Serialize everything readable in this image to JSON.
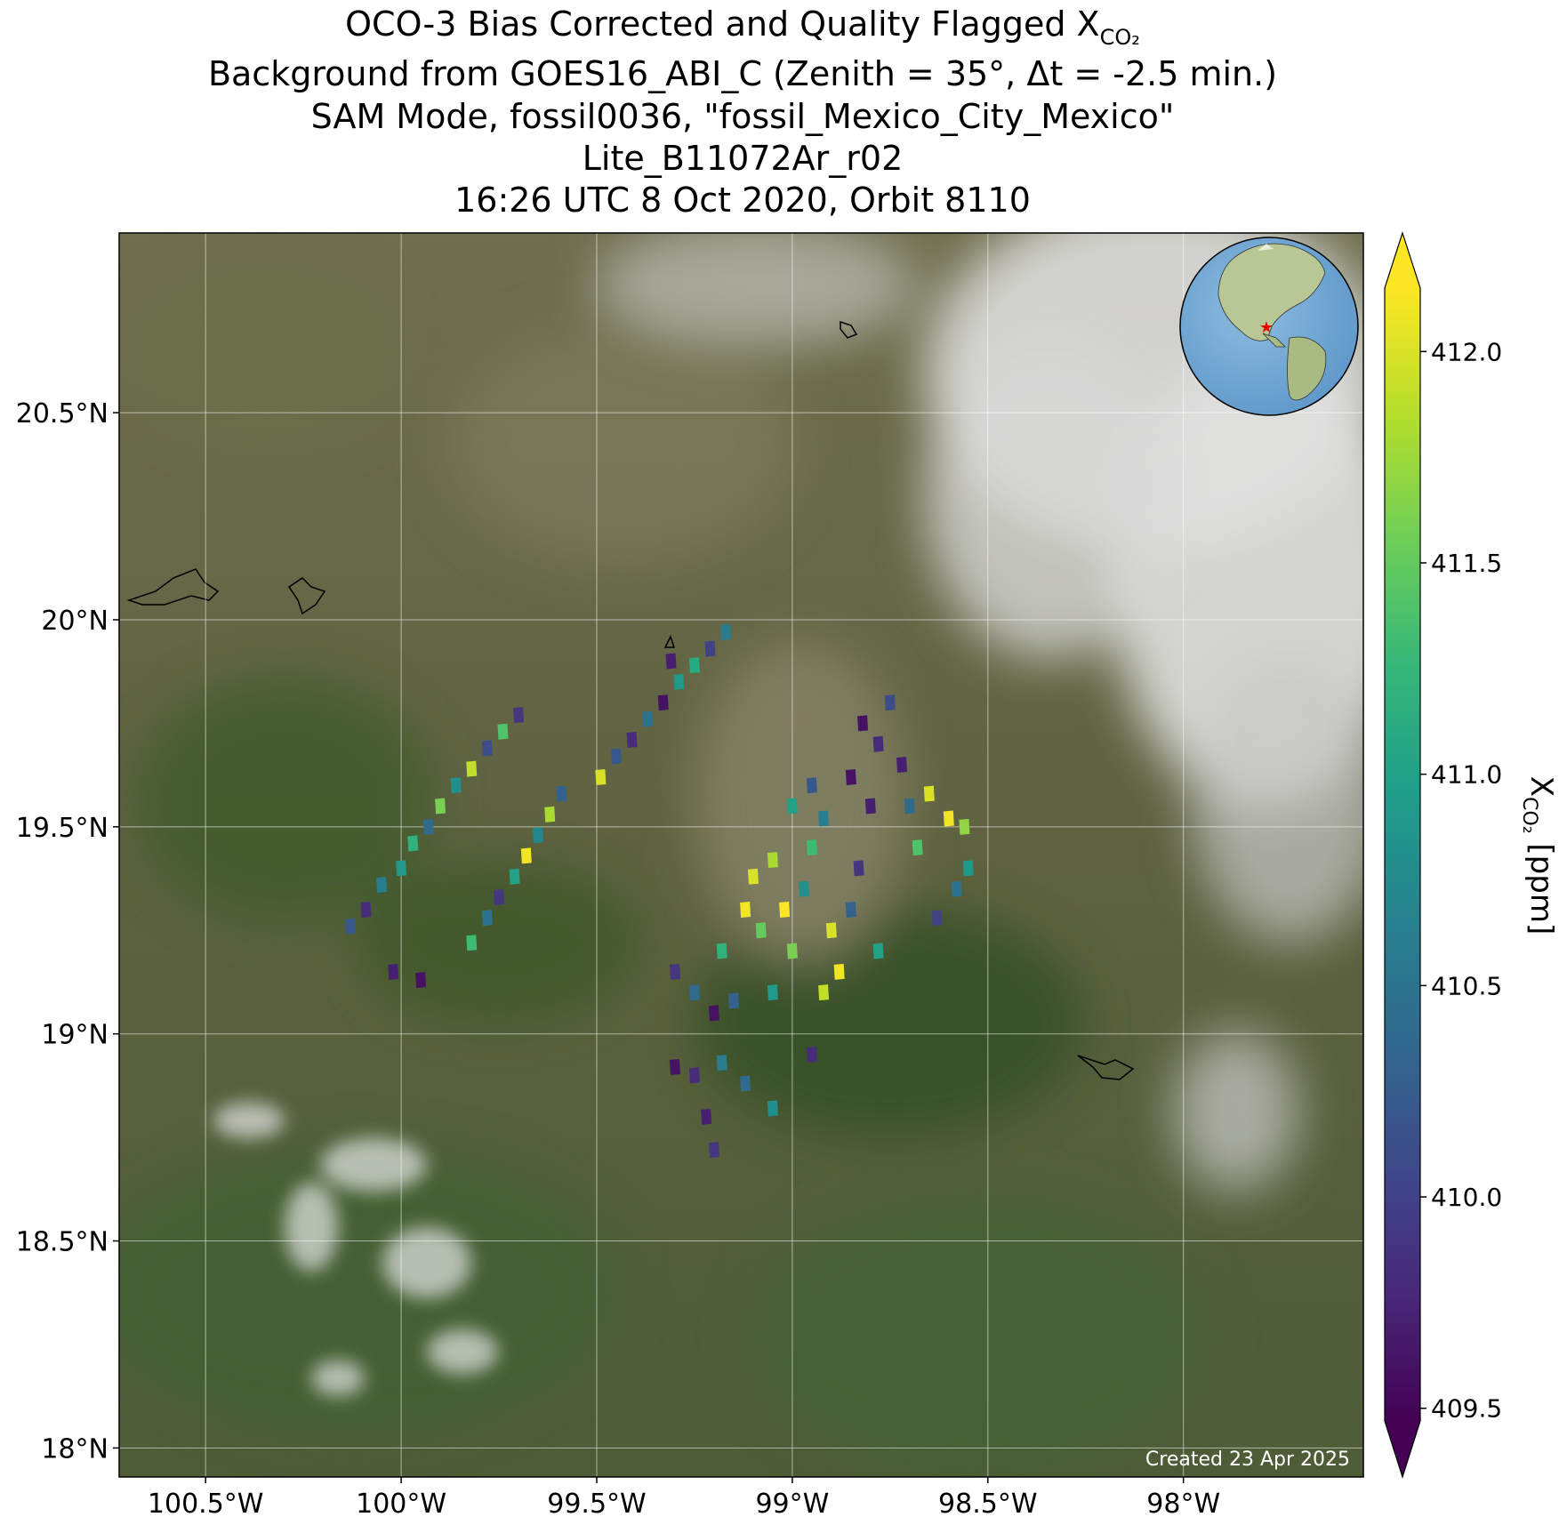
{
  "chart_data": {
    "type": "scatter",
    "title": "OCO-3 Bias Corrected and Quality Flagged X",
    "title_subscript": "CO₂",
    "subtitle": [
      "Background from GOES16_ABI_C (Zenith = 35°, Δt = -2.5 min.)",
      "SAM Mode, fossil0036, \"fossil_Mexico_City_Mexico\"",
      "Lite_B11072Ar_r02",
      "16:26 UTC 8 Oct 2020, Orbit 8110"
    ],
    "footnote": "Created 23 Apr 2025",
    "colorbar_label": {
      "symbol": "X",
      "subscript": "CO₂",
      "unit": " [ppm]"
    },
    "cmap": "viridis",
    "clim": [
      409.47,
      412.15
    ],
    "cticks": [
      {
        "value": 409.5,
        "label": "409.5"
      },
      {
        "value": 410,
        "label": "410.0"
      },
      410.5,
      {
        "value": 411,
        "label": "411.0"
      },
      411.5,
      {
        "value": 412,
        "label": "412.0"
      }
    ],
    "xlim": [
      -100.721,
      -97.54
    ],
    "ylim": [
      17.93,
      20.934
    ],
    "xticks": [
      {
        "value": -100.5,
        "label": "100.5°W"
      },
      {
        "value": -100,
        "label": "100°W"
      },
      {
        "value": -99.5,
        "label": "99.5°W"
      },
      {
        "value": -99,
        "label": "99°W"
      },
      {
        "value": -98.5,
        "label": "98.5°W"
      },
      {
        "value": -98,
        "label": "98°W"
      }
    ],
    "yticks": [
      {
        "value": 18,
        "label": "18°N"
      },
      {
        "value": 18.5,
        "label": "18.5°N"
      },
      {
        "value": 19,
        "label": "19°N"
      },
      {
        "value": 19.5,
        "label": "19.5°N"
      },
      {
        "value": 20,
        "label": "20°N"
      },
      {
        "value": 20.5,
        "label": "20.5°N"
      }
    ],
    "grid": true,
    "x": [
      -100.13,
      -100.09,
      -100.05,
      -100.0,
      -99.97,
      -99.93,
      -99.9,
      -99.86,
      -99.82,
      -99.78,
      -99.74,
      -99.7,
      -100.02,
      -99.95,
      -99.82,
      -99.78,
      -99.75,
      -99.71,
      -99.68,
      -99.65,
      -99.62,
      -99.59,
      -99.49,
      -99.45,
      -99.41,
      -99.37,
      -99.33,
      -99.29,
      -99.25,
      -99.21,
      -99.17,
      -99.31,
      -99.3,
      -99.25,
      -99.2,
      -99.18,
      -99.12,
      -99.1,
      -99.05,
      -99.08,
      -99.02,
      -99.0,
      -98.97,
      -98.95,
      -98.92,
      -98.9,
      -98.88,
      -98.92,
      -98.85,
      -98.83,
      -98.8,
      -98.85,
      -98.78,
      -98.82,
      -98.75,
      -98.72,
      -98.7,
      -98.68,
      -98.65,
      -98.6,
      -98.56,
      -98.55,
      -98.58,
      -98.63,
      -98.78,
      -98.95,
      -99.0,
      -99.05,
      -99.15,
      -99.3,
      -99.25,
      -99.18,
      -99.12,
      -99.22,
      -99.2,
      -99.05,
      -98.95
    ],
    "y": [
      19.26,
      19.3,
      19.36,
      19.4,
      19.46,
      19.5,
      19.55,
      19.6,
      19.64,
      19.69,
      19.73,
      19.77,
      19.15,
      19.13,
      19.22,
      19.28,
      19.33,
      19.38,
      19.43,
      19.48,
      19.53,
      19.58,
      19.62,
      19.67,
      19.71,
      19.76,
      19.8,
      19.85,
      19.89,
      19.93,
      19.97,
      19.9,
      19.15,
      19.1,
      19.05,
      19.2,
      19.3,
      19.38,
      19.42,
      19.25,
      19.3,
      19.2,
      19.35,
      19.45,
      19.52,
      19.25,
      19.15,
      19.1,
      19.3,
      19.4,
      19.55,
      19.62,
      19.7,
      19.75,
      19.8,
      19.65,
      19.55,
      19.45,
      19.58,
      19.52,
      19.5,
      19.4,
      19.35,
      19.28,
      19.2,
      19.6,
      19.55,
      19.1,
      19.08,
      18.92,
      18.9,
      18.93,
      18.88,
      18.8,
      18.72,
      18.82,
      18.95
    ],
    "values": [
      410.2,
      409.8,
      410.6,
      410.9,
      411.2,
      410.4,
      411.6,
      410.8,
      411.9,
      410.1,
      411.4,
      409.9,
      409.7,
      409.6,
      411.3,
      410.5,
      409.9,
      411.0,
      412.1,
      410.7,
      411.8,
      410.3,
      412.0,
      410.2,
      409.8,
      410.5,
      409.6,
      410.9,
      411.1,
      410.0,
      410.6,
      409.7,
      409.9,
      410.4,
      409.6,
      411.2,
      412.1,
      412.0,
      411.8,
      411.5,
      412.2,
      411.6,
      410.8,
      411.3,
      410.6,
      412.0,
      412.1,
      411.9,
      410.3,
      409.9,
      409.7,
      409.6,
      409.8,
      409.6,
      410.1,
      409.7,
      410.4,
      411.4,
      412.0,
      412.1,
      411.7,
      410.9,
      410.5,
      410.0,
      411.0,
      410.2,
      411.0,
      410.9,
      410.3,
      409.6,
      409.8,
      410.6,
      410.4,
      409.7,
      409.9,
      410.8,
      409.8
    ]
  }
}
